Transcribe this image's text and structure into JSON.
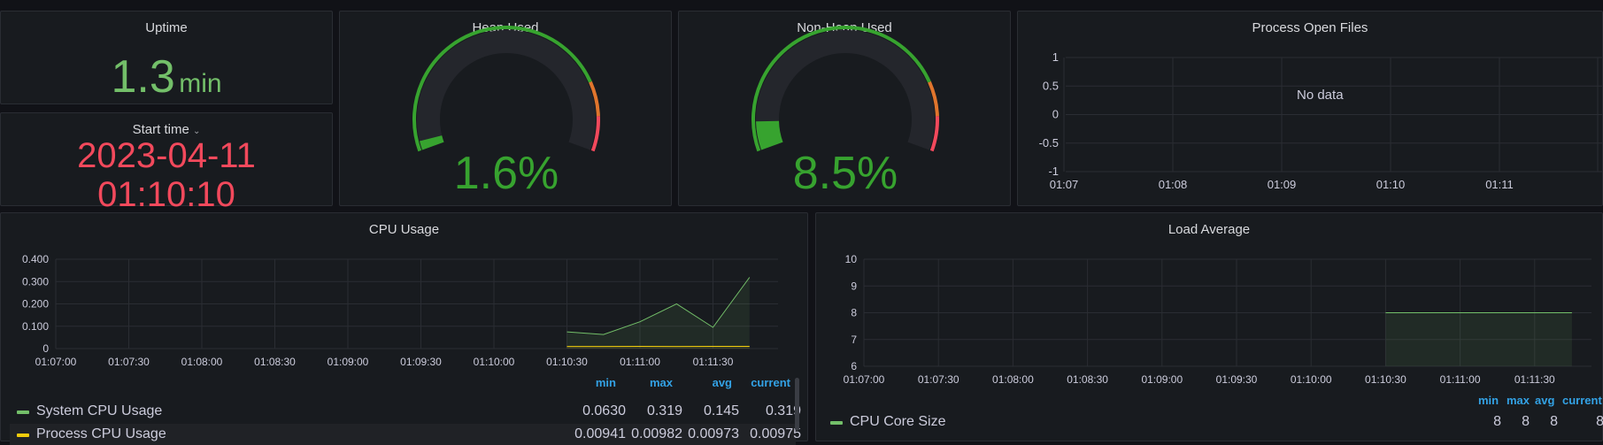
{
  "colors": {
    "green": "#73bf69",
    "gauge_green": "#37a32f",
    "orange": "#e0752d",
    "red": "#f2495c",
    "yellow": "#f2cc0c",
    "blue": "#33a2e5"
  },
  "uptime": {
    "title": "Uptime",
    "value": "1.3",
    "unit": "min"
  },
  "start_time": {
    "title": "Start time",
    "chevron_icon": "chevron-down-icon",
    "date": "2023-04-11",
    "time": "01:10:10"
  },
  "heap": {
    "title": "Heap Used",
    "value_text": "1.6%",
    "percent": 1.6
  },
  "nonheap": {
    "title": "Non-Heap Used",
    "value_text": "8.5%",
    "percent": 8.5
  },
  "open_files": {
    "title": "Process Open Files",
    "no_data": "No data",
    "y_ticks": [
      "1",
      "0.5",
      "0",
      "-0.5",
      "-1"
    ],
    "x_ticks": [
      "01:07",
      "01:08",
      "01:09",
      "01:10",
      "01:11"
    ]
  },
  "cpu": {
    "title": "CPU Usage",
    "legend_headers": [
      "min",
      "max",
      "avg",
      "current"
    ],
    "legend": [
      {
        "name": "System CPU Usage",
        "min": "0.0630",
        "max": "0.319",
        "avg": "0.145",
        "current": "0.319"
      },
      {
        "name": "Process CPU Usage",
        "min": "0.00941",
        "max": "0.00982",
        "avg": "0.00973",
        "current": "0.00975"
      }
    ]
  },
  "load": {
    "title": "Load Average",
    "legend_headers": [
      "min",
      "max",
      "avg",
      "current"
    ],
    "legend": [
      {
        "name": "CPU Core Size",
        "min": "8",
        "max": "8",
        "avg": "8",
        "current": "8"
      }
    ]
  },
  "chart_data": [
    {
      "type": "line",
      "title": "Process Open Files",
      "x": [
        "01:07",
        "01:08",
        "01:09",
        "01:10",
        "01:11"
      ],
      "ylim": [
        -1,
        1
      ],
      "y_ticks": [
        1,
        0.5,
        0,
        -0.5,
        -1
      ],
      "series": []
    },
    {
      "type": "area",
      "title": "CPU Usage",
      "x": [
        "01:07:00",
        "01:07:30",
        "01:08:00",
        "01:08:30",
        "01:09:00",
        "01:09:30",
        "01:10:00",
        "01:10:30",
        "01:11:00",
        "01:11:30"
      ],
      "ylim": [
        0,
        0.4
      ],
      "y_ticks": [
        "0",
        "0.100",
        "0.200",
        "0.300",
        "0.400"
      ],
      "series": [
        {
          "name": "System CPU Usage",
          "color": "#73bf69",
          "points": [
            [
              "01:10:30",
              0.075
            ],
            [
              "01:10:45",
              0.063
            ],
            [
              "01:11:00",
              0.12
            ],
            [
              "01:11:15",
              0.2
            ],
            [
              "01:11:30",
              0.095
            ],
            [
              "01:11:45",
              0.319
            ]
          ]
        },
        {
          "name": "Process CPU Usage",
          "color": "#f2cc0c",
          "points": [
            [
              "01:10:30",
              0.00941
            ],
            [
              "01:10:45",
              0.0097
            ],
            [
              "01:11:00",
              0.0098
            ],
            [
              "01:11:15",
              0.0097
            ],
            [
              "01:11:30",
              0.0098
            ],
            [
              "01:11:45",
              0.00975
            ]
          ]
        }
      ]
    },
    {
      "type": "area",
      "title": "Load Average",
      "x": [
        "01:07:00",
        "01:07:30",
        "01:08:00",
        "01:08:30",
        "01:09:00",
        "01:09:30",
        "01:10:00",
        "01:10:30",
        "01:11:00",
        "01:11:30"
      ],
      "ylim": [
        6,
        10
      ],
      "y_ticks": [
        "10",
        "9",
        "8",
        "7",
        "6"
      ],
      "series": [
        {
          "name": "CPU Core Size",
          "color": "#73bf69",
          "points": [
            [
              "01:10:30",
              8
            ],
            [
              "01:11:45",
              8
            ]
          ]
        }
      ]
    }
  ]
}
